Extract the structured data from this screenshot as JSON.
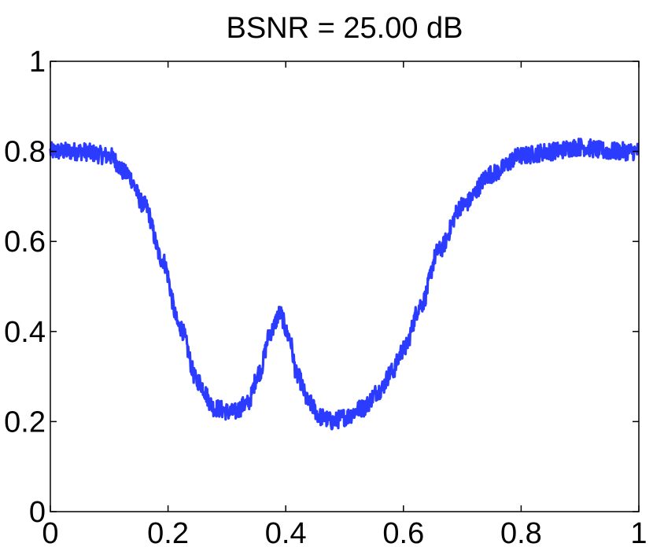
{
  "chart_data": {
    "type": "line",
    "title": "BSNR = 25.00 dB",
    "xlabel": "",
    "ylabel": "",
    "xlim": [
      0,
      1
    ],
    "ylim": [
      0,
      1
    ],
    "grid": false,
    "legend": "none",
    "x_ticks": [
      0,
      0.2,
      0.4,
      0.6,
      0.8,
      1
    ],
    "x_tick_labels": [
      "0",
      "0.2",
      "0.4",
      "0.6",
      "0.8",
      "1"
    ],
    "y_ticks": [
      0,
      0.2,
      0.4,
      0.6,
      0.8,
      1
    ],
    "y_tick_labels": [
      "0",
      "0.2",
      "0.4",
      "0.6",
      "0.8",
      "1"
    ],
    "series": [
      {
        "color": "#2b3bff",
        "noise_amplitude": 0.02,
        "x": [
          0.0,
          0.05,
          0.1,
          0.13,
          0.16,
          0.19,
          0.22,
          0.25,
          0.28,
          0.31,
          0.335,
          0.355,
          0.375,
          0.39,
          0.405,
          0.42,
          0.44,
          0.46,
          0.48,
          0.5,
          0.53,
          0.56,
          0.58,
          0.6,
          0.63,
          0.66,
          0.7,
          0.75,
          0.8,
          0.85,
          0.9,
          0.95,
          1.0
        ],
        "y": [
          0.8,
          0.8,
          0.79,
          0.75,
          0.68,
          0.56,
          0.41,
          0.29,
          0.23,
          0.22,
          0.24,
          0.31,
          0.4,
          0.44,
          0.39,
          0.3,
          0.24,
          0.21,
          0.2,
          0.21,
          0.23,
          0.27,
          0.31,
          0.36,
          0.46,
          0.58,
          0.68,
          0.75,
          0.79,
          0.8,
          0.81,
          0.8,
          0.8
        ]
      }
    ]
  }
}
